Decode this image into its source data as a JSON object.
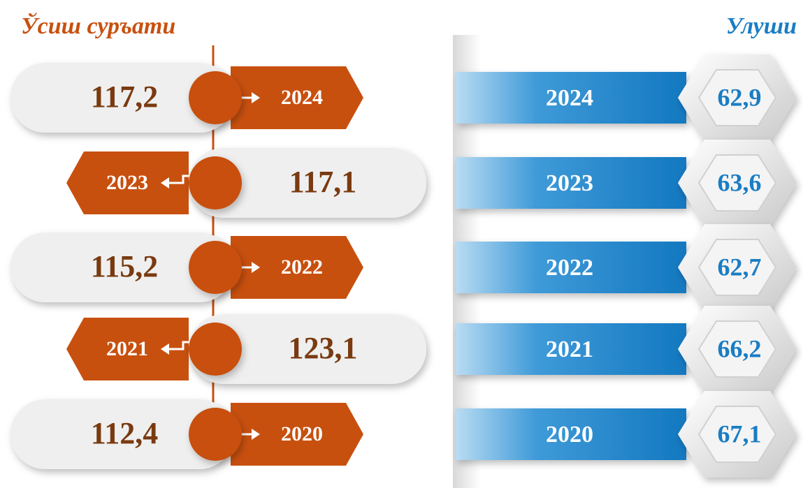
{
  "left": {
    "title": "Ўсиш суръати",
    "rows": [
      {
        "year": "2024",
        "value": "117,2"
      },
      {
        "year": "2023",
        "value": "117,1"
      },
      {
        "year": "2022",
        "value": "115,2"
      },
      {
        "year": "2021",
        "value": "123,1"
      },
      {
        "year": "2020",
        "value": "112,4"
      }
    ]
  },
  "right": {
    "title": "Улуши",
    "rows": [
      {
        "year": "2024",
        "value": "62,9"
      },
      {
        "year": "2023",
        "value": "63,6"
      },
      {
        "year": "2022",
        "value": "62,7"
      },
      {
        "year": "2021",
        "value": "66,2"
      },
      {
        "year": "2020",
        "value": "67,1"
      }
    ]
  }
}
